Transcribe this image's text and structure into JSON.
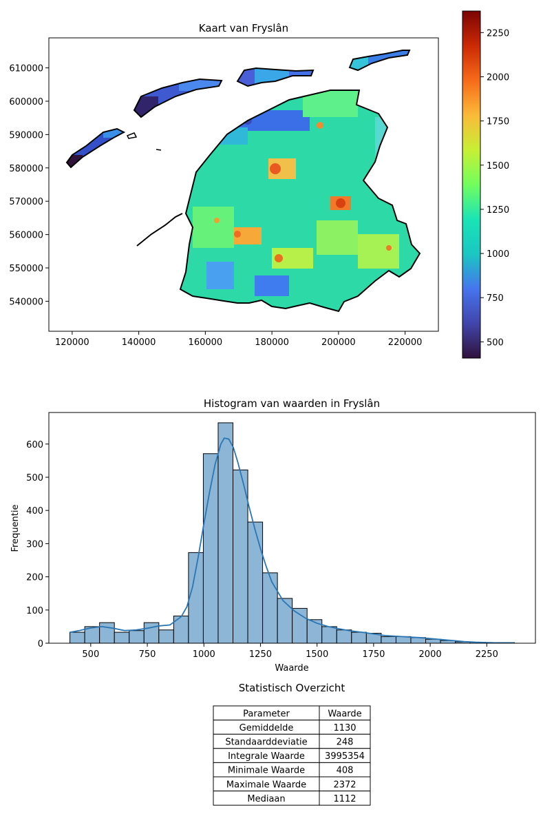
{
  "map": {
    "title": "Kaart van Fryslân",
    "x_ticks": [
      "120000",
      "140000",
      "160000",
      "180000",
      "200000",
      "220000"
    ],
    "y_ticks": [
      "540000",
      "550000",
      "560000",
      "570000",
      "580000",
      "590000",
      "600000",
      "610000"
    ],
    "xlim": [
      113000,
      230000
    ],
    "ylim": [
      531000,
      619000
    ],
    "colorbar": {
      "range": [
        408,
        2372
      ],
      "ticks": [
        "500",
        "750",
        "1000",
        "1250",
        "1500",
        "1750",
        "2000",
        "2250"
      ],
      "colormap": "turbo"
    },
    "outline_color": "#000000"
  },
  "chart_data": {
    "type": "bar",
    "title": "Histogram van waarden in Fryslân",
    "xlabel": "Waarde",
    "ylabel": "Frequentie",
    "bin_edges": [
      408,
      473.5,
      539,
      604.5,
      670,
      735.5,
      801,
      866.5,
      932,
      997.5,
      1063,
      1128.5,
      1194,
      1259.5,
      1325,
      1390.5,
      1456,
      1521.5,
      1587,
      1652.5,
      1718,
      1783.5,
      1849,
      1914.5,
      1980,
      2045.5,
      2111,
      2176.5,
      2242,
      2307.5,
      2372
    ],
    "values": [
      33,
      50,
      62,
      33,
      38,
      62,
      40,
      82,
      273,
      571,
      664,
      522,
      365,
      212,
      135,
      105,
      71,
      50,
      40,
      33,
      30,
      20,
      20,
      17,
      12,
      8,
      4,
      3,
      2,
      2
    ],
    "kde": {
      "x": [
        408,
        450,
        500,
        550,
        600,
        650,
        700,
        750,
        800,
        850,
        900,
        925,
        950,
        975,
        1000,
        1025,
        1050,
        1075,
        1090,
        1110,
        1130,
        1150,
        1175,
        1200,
        1225,
        1250,
        1275,
        1300,
        1350,
        1400,
        1450,
        1500,
        1550,
        1600,
        1650,
        1700,
        1750,
        1800,
        1850,
        1900,
        1950,
        2000,
        2050,
        2100,
        2150,
        2200,
        2250,
        2300,
        2372
      ],
      "y": [
        33,
        38,
        46,
        50,
        45,
        38,
        40,
        45,
        52,
        55,
        80,
        110,
        170,
        260,
        360,
        455,
        540,
        600,
        618,
        615,
        590,
        545,
        480,
        410,
        345,
        285,
        232,
        185,
        128,
        97,
        75,
        60,
        50,
        43,
        37,
        33,
        28,
        23,
        21,
        19,
        17,
        14,
        11,
        8,
        5,
        3,
        2,
        1,
        1
      ]
    },
    "xlim": [
      315,
      2465
    ],
    "ylim": [
      0,
      695
    ],
    "x_ticks": [
      500,
      750,
      1000,
      1250,
      1500,
      1750,
      2000,
      2250
    ],
    "y_ticks": [
      0,
      100,
      200,
      300,
      400,
      500,
      600
    ],
    "bar_color": "#8cb5d6",
    "line_color": "#2a76b4"
  },
  "stats": {
    "title": "Statistisch Overzicht",
    "header": [
      "Parameter",
      "Waarde"
    ],
    "rows": [
      [
        "Gemiddelde",
        "1130"
      ],
      [
        "Standaarddeviatie",
        "248"
      ],
      [
        "Integrale Waarde",
        "3995354"
      ],
      [
        "Minimale Waarde",
        "408"
      ],
      [
        "Maximale Waarde",
        "2372"
      ],
      [
        "Mediaan",
        "1112"
      ]
    ]
  }
}
